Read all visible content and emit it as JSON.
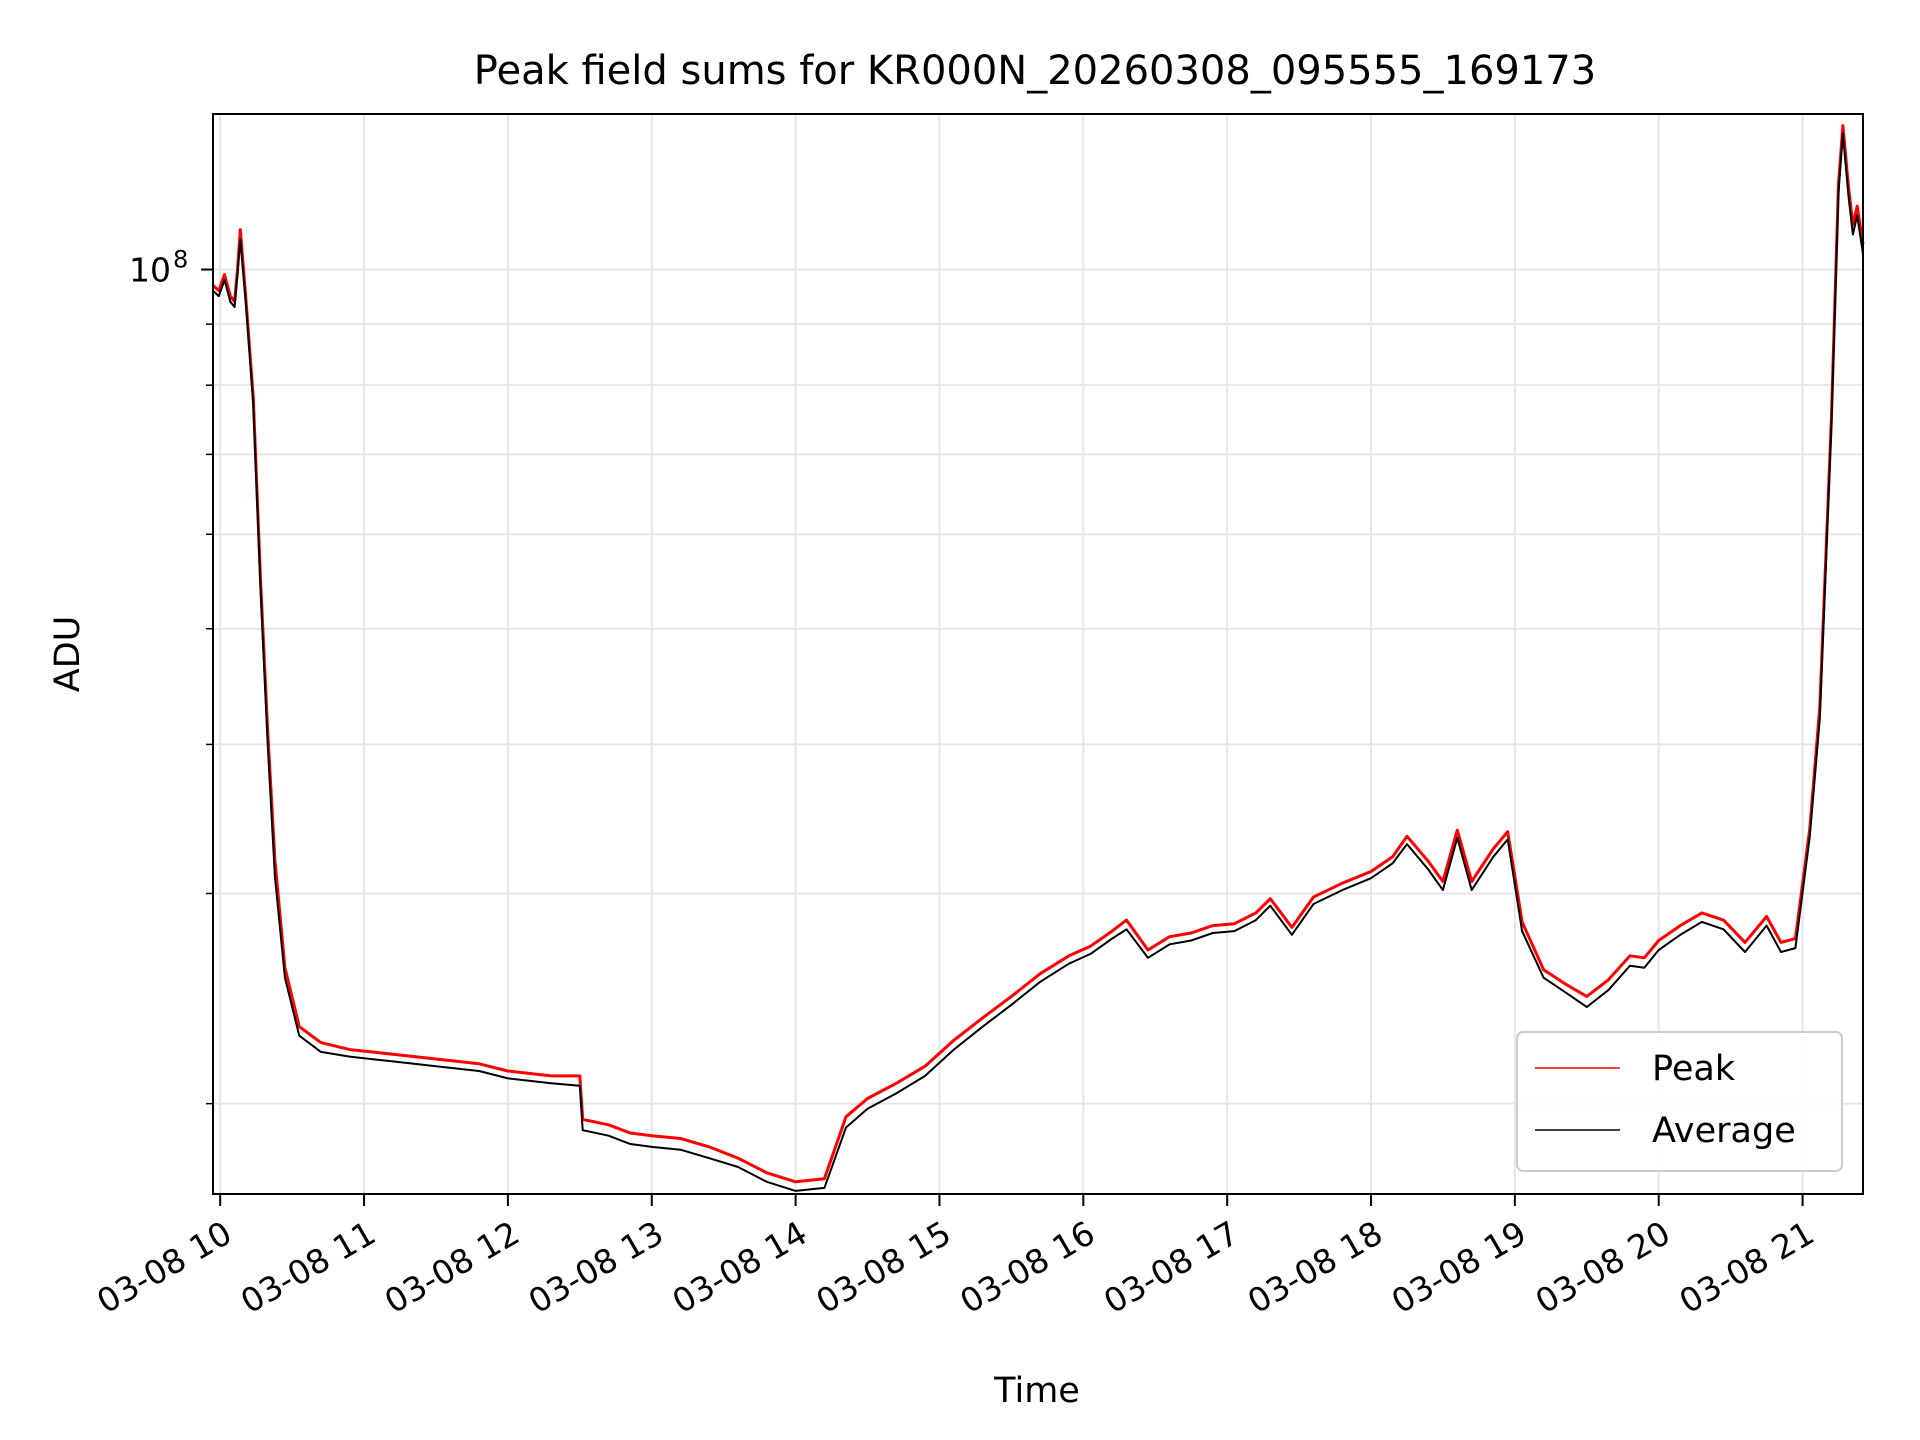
{
  "chart_data": {
    "type": "line",
    "title": "Peak field sums for KR000N_20260308_095555_169173",
    "xlabel": "Time",
    "ylabel": "ADU",
    "yscale": "log",
    "grid": true,
    "legend_position": "bottom-right",
    "xlim": [
      9.95,
      21.42
    ],
    "ylim": [
      16800000,
      135000000
    ],
    "x_ticks": [
      10,
      11,
      12,
      13,
      14,
      15,
      16,
      17,
      18,
      19,
      20,
      21
    ],
    "x_tick_labels": [
      "03-08 10",
      "03-08 11",
      "03-08 12",
      "03-08 13",
      "03-08 14",
      "03-08 15",
      "03-08 16",
      "03-08 17",
      "03-08 18",
      "03-08 19",
      "03-08 20",
      "03-08 21"
    ],
    "y_major_ticks": [
      100000000
    ],
    "y_major_tick_labels": [
      "10"
    ],
    "y_major_tick_exponent": "8",
    "y_minor_ticks": [
      20000000,
      30000000,
      40000000,
      50000000,
      60000000,
      70000000,
      80000000,
      90000000
    ],
    "series": [
      {
        "name": "Peak",
        "color": "#ff0000",
        "x": [
          9.95,
          9.99,
          10.03,
          10.07,
          10.1,
          10.12,
          10.14,
          10.18,
          10.23,
          10.28,
          10.33,
          10.38,
          10.45,
          10.55,
          10.7,
          10.9,
          11.2,
          11.5,
          11.8,
          12.0,
          12.3,
          12.5,
          12.52,
          12.7,
          12.85,
          13.0,
          13.2,
          13.4,
          13.6,
          13.8,
          14.0,
          14.2,
          14.35,
          14.5,
          14.7,
          14.9,
          15.1,
          15.3,
          15.5,
          15.7,
          15.9,
          16.05,
          16.2,
          16.3,
          16.45,
          16.6,
          16.75,
          16.9,
          17.05,
          17.2,
          17.3,
          17.45,
          17.6,
          17.8,
          18.0,
          18.15,
          18.25,
          18.4,
          18.5,
          18.6,
          18.7,
          18.85,
          18.95,
          19.05,
          19.2,
          19.35,
          19.5,
          19.65,
          19.8,
          19.9,
          20.0,
          20.15,
          20.3,
          20.45,
          20.6,
          20.75,
          20.85,
          20.95,
          21.05,
          21.12,
          21.2,
          21.25,
          21.28,
          21.32,
          21.35,
          21.38,
          21.42
        ],
        "values": [
          97000000,
          96000000,
          99000000,
          95000000,
          94000000,
          100000000,
          108000000,
          94000000,
          78000000,
          55000000,
          41000000,
          32000000,
          26000000,
          23200000,
          22500000,
          22200000,
          22000000,
          21800000,
          21600000,
          21300000,
          21100000,
          21100000,
          19400000,
          19200000,
          18900000,
          18800000,
          18700000,
          18400000,
          18000000,
          17500000,
          17200000,
          17300000,
          19500000,
          20200000,
          20800000,
          21500000,
          22600000,
          23600000,
          24600000,
          25700000,
          26600000,
          27100000,
          27900000,
          28500000,
          26900000,
          27600000,
          27800000,
          28200000,
          28300000,
          28900000,
          29700000,
          28100000,
          29800000,
          30600000,
          31300000,
          32200000,
          33500000,
          31900000,
          30700000,
          33900000,
          30700000,
          32700000,
          33800000,
          28400000,
          25900000,
          25200000,
          24600000,
          25400000,
          26600000,
          26500000,
          27400000,
          28200000,
          28900000,
          28500000,
          27300000,
          28700000,
          27300000,
          27500000,
          34000000,
          43000000,
          75000000,
          118000000,
          132000000,
          117000000,
          109000000,
          113000000,
          105000000
        ]
      },
      {
        "name": "Average",
        "color": "#000000",
        "x": [
          9.95,
          9.99,
          10.03,
          10.07,
          10.1,
          10.12,
          10.14,
          10.18,
          10.23,
          10.28,
          10.33,
          10.38,
          10.45,
          10.55,
          10.7,
          10.9,
          11.2,
          11.5,
          11.8,
          12.0,
          12.3,
          12.5,
          12.52,
          12.7,
          12.85,
          13.0,
          13.2,
          13.4,
          13.6,
          13.8,
          14.0,
          14.2,
          14.35,
          14.5,
          14.7,
          14.9,
          15.1,
          15.3,
          15.5,
          15.7,
          15.9,
          16.05,
          16.2,
          16.3,
          16.45,
          16.6,
          16.75,
          16.9,
          17.05,
          17.2,
          17.3,
          17.45,
          17.6,
          17.8,
          18.0,
          18.15,
          18.25,
          18.4,
          18.5,
          18.6,
          18.7,
          18.85,
          18.95,
          19.05,
          19.2,
          19.35,
          19.5,
          19.65,
          19.8,
          19.9,
          20.0,
          20.15,
          20.3,
          20.45,
          20.6,
          20.75,
          20.85,
          20.95,
          21.05,
          21.12,
          21.2,
          21.25,
          21.28,
          21.32,
          21.35,
          21.38,
          21.42
        ],
        "values": [
          96000000,
          95000000,
          98000000,
          94000000,
          93000000,
          99000000,
          106000000,
          93000000,
          77000000,
          54000000,
          40000000,
          31000000,
          25500000,
          22800000,
          22100000,
          21900000,
          21700000,
          21500000,
          21300000,
          21000000,
          20800000,
          20700000,
          19000000,
          18800000,
          18500000,
          18400000,
          18300000,
          18000000,
          17700000,
          17200000,
          16900000,
          17000000,
          19100000,
          19800000,
          20400000,
          21100000,
          22200000,
          23200000,
          24200000,
          25300000,
          26200000,
          26700000,
          27500000,
          28000000,
          26500000,
          27200000,
          27400000,
          27800000,
          27900000,
          28500000,
          29300000,
          27700000,
          29400000,
          30200000,
          30900000,
          31800000,
          33000000,
          31400000,
          30200000,
          33400000,
          30200000,
          32200000,
          33300000,
          27900000,
          25500000,
          24800000,
          24100000,
          24900000,
          26100000,
          26000000,
          26900000,
          27700000,
          28400000,
          28000000,
          26800000,
          28200000,
          26800000,
          27000000,
          33500000,
          42000000,
          74000000,
          116000000,
          130000000,
          115000000,
          107000000,
          111000000,
          103000000
        ]
      }
    ]
  }
}
